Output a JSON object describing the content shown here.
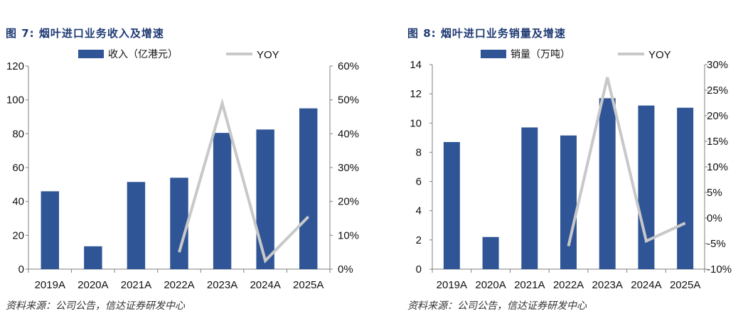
{
  "chart_data": [
    {
      "type": "bar",
      "figure_label": "图 7:",
      "title": "烟叶进口业务收入及增速",
      "categories": [
        "2019A",
        "2020A",
        "2021A",
        "2022A",
        "2023A",
        "2024A",
        "2025A"
      ],
      "series": [
        {
          "name": "收入（亿港元）",
          "axis": "left",
          "type": "bar",
          "values": [
            46,
            13.5,
            51.5,
            54,
            80.5,
            82.5,
            95
          ]
        },
        {
          "name": "YOY",
          "axis": "right",
          "type": "line",
          "values": [
            null,
            null,
            null,
            5,
            49,
            2.5,
            15.5
          ]
        }
      ],
      "y_left": {
        "range": [
          0,
          120
        ],
        "ticks": [
          0,
          20,
          40,
          60,
          80,
          100,
          120
        ],
        "tick_labels": [
          "0",
          "20",
          "40",
          "60",
          "80",
          "100",
          "120"
        ]
      },
      "y_right": {
        "range": [
          0,
          60
        ],
        "ticks": [
          0,
          10,
          20,
          30,
          40,
          50,
          60
        ],
        "tick_labels": [
          "0%",
          "10%",
          "20%",
          "30%",
          "40%",
          "50%",
          "60%"
        ]
      },
      "legend_position": "top",
      "source": "资料来源：公司公告，信达证券研发中心",
      "colors": {
        "bar": "#2f5597",
        "line": "#c8c8c8",
        "title": "#1f3a73"
      }
    },
    {
      "type": "bar",
      "figure_label": "图 8:",
      "title": "烟叶进口业务销量及增速",
      "categories": [
        "2019A",
        "2020A",
        "2021A",
        "2022A",
        "2023A",
        "2024A",
        "2025A"
      ],
      "series": [
        {
          "name": "销量（万吨）",
          "axis": "left",
          "type": "bar",
          "values": [
            8.7,
            2.2,
            9.7,
            9.15,
            11.7,
            11.2,
            11.05
          ]
        },
        {
          "name": "YOY",
          "axis": "right",
          "type": "line",
          "values": [
            null,
            null,
            null,
            -5.5,
            27.5,
            -4.5,
            -1
          ]
        }
      ],
      "y_left": {
        "range": [
          0,
          14
        ],
        "ticks": [
          0,
          2,
          4,
          6,
          8,
          10,
          12,
          14
        ],
        "tick_labels": [
          "0",
          "2",
          "4",
          "6",
          "8",
          "10",
          "12",
          "14"
        ]
      },
      "y_right": {
        "range": [
          -10,
          30
        ],
        "ticks": [
          -10,
          -5,
          0,
          5,
          10,
          15,
          20,
          25,
          30
        ],
        "tick_labels": [
          "-10%",
          "-5%",
          "0%",
          "5%",
          "10%",
          "15%",
          "20%",
          "25%",
          "30%"
        ]
      },
      "legend_position": "top",
      "source": "资料来源：公司公告，信达证券研发中心",
      "colors": {
        "bar": "#2f5597",
        "line": "#c8c8c8",
        "title": "#1f3a73"
      }
    }
  ]
}
